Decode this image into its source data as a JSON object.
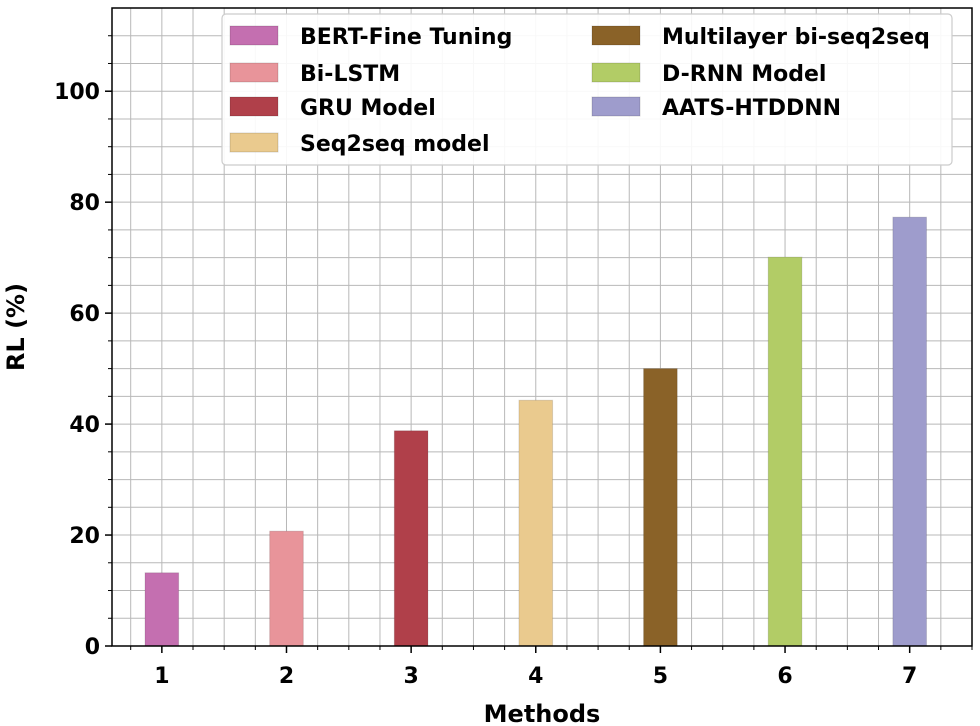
{
  "chart_data": {
    "type": "bar",
    "title": "",
    "xlabel": "Methods",
    "ylabel": "RL (%)",
    "categories": [
      "1",
      "2",
      "3",
      "4",
      "5",
      "6",
      "7"
    ],
    "ylim": [
      0,
      115
    ],
    "yticks": [
      0,
      20,
      40,
      60,
      80,
      100
    ],
    "grid": true,
    "legend_position": "top-right",
    "series": [
      {
        "name": "BERT-Fine Tuning",
        "category": "1",
        "value": 13.2,
        "color": "#c46fb0"
      },
      {
        "name": "Bi-LSTM",
        "category": "2",
        "value": 20.7,
        "color": "#e8949a"
      },
      {
        "name": "GRU Model",
        "category": "3",
        "value": 38.8,
        "color": "#b0404a"
      },
      {
        "name": "Seq2seq model",
        "category": "4",
        "value": 44.3,
        "color": "#eaca8e"
      },
      {
        "name": "Multilayer bi-seq2seq",
        "category": "5",
        "value": 50.0,
        "color": "#8a6228"
      },
      {
        "name": "D-RNN Model",
        "category": "6",
        "value": 70.1,
        "color": "#b2cc66"
      },
      {
        "name": "AATS-HTDDNN",
        "category": "7",
        "value": 77.3,
        "color": "#9e9ccc"
      }
    ]
  }
}
